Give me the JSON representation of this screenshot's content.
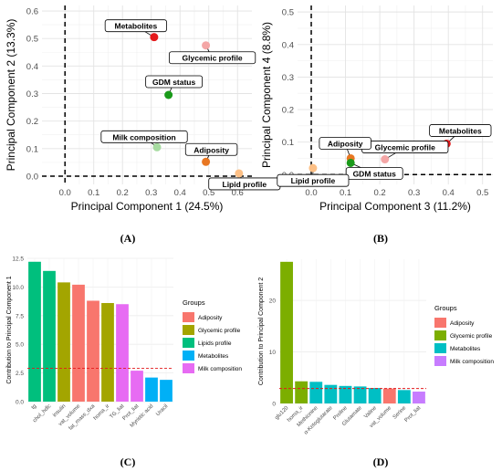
{
  "panels": {
    "A": "(A)",
    "B": "(B)",
    "C": "(C)",
    "D": "(D)"
  },
  "colors": {
    "adiposity": "#F8766D",
    "glycemic": "#7CAE00",
    "lipids": "#00BE67",
    "metabolites": "#00A9FF",
    "milk": "#FF61F2",
    "metabolites_d": "#00BFC4",
    "milk_d": "#C77CFF",
    "threshold": "#E31A1C"
  },
  "chart_data": [
    {
      "type": "scatter",
      "id": "A",
      "xlabel": "Principal Component 1 (24.5%)",
      "ylabel": "Principal Component 2 (13.3%)",
      "xlim": [
        -0.08,
        0.65
      ],
      "ylim": [
        -0.03,
        0.62
      ],
      "xticks": [
        "0.0",
        "0.1",
        "0.2",
        "0.3",
        "0.4",
        "0.5",
        "0.6"
      ],
      "yticks": [
        "0.0",
        "0.1",
        "0.2",
        "0.3",
        "0.4",
        "0.5",
        "0.6"
      ],
      "points": [
        {
          "label": "Metabolites",
          "x": 0.31,
          "y": 0.505,
          "color": "#E41A1C"
        },
        {
          "label": "Glycemic profile",
          "x": 0.49,
          "y": 0.475,
          "color": "#F4A6A6"
        },
        {
          "label": "GDM status",
          "x": 0.36,
          "y": 0.295,
          "color": "#1A9A1A"
        },
        {
          "label": "Milk composition",
          "x": 0.32,
          "y": 0.105,
          "color": "#A6DBA0"
        },
        {
          "label": "Adiposity",
          "x": 0.49,
          "y": 0.052,
          "color": "#E87722"
        },
        {
          "label": "Lipid profile",
          "x": 0.605,
          "y": 0.01,
          "color": "#FDC086"
        }
      ]
    },
    {
      "type": "scatter",
      "id": "B",
      "xlabel": "Principal Component 3 (11.2%)",
      "ylabel": "Principal Component 4 (8.8%)",
      "xlim": [
        -0.04,
        0.53
      ],
      "ylim": [
        -0.03,
        0.52
      ],
      "xticks": [
        "0.0",
        "0.1",
        "0.2",
        "0.3",
        "0.4",
        "0.5"
      ],
      "yticks": [
        "0.0",
        "0.1",
        "0.2",
        "0.3",
        "0.4",
        "0.5"
      ],
      "points": [
        {
          "label": "Metabolites",
          "x": 0.395,
          "y": 0.095,
          "color": "#E41A1C"
        },
        {
          "label": "Glycemic profile",
          "x": 0.215,
          "y": 0.047,
          "color": "#F4A6A6"
        },
        {
          "label": "Adiposity",
          "x": 0.115,
          "y": 0.05,
          "color": "#E87722"
        },
        {
          "label": "GDM status",
          "x": 0.115,
          "y": 0.036,
          "color": "#1A9A1A"
        },
        {
          "label": "Lipid profile",
          "x": 0.005,
          "y": 0.02,
          "color": "#FDC086"
        }
      ]
    },
    {
      "type": "bar",
      "id": "C",
      "ylabel": "Contribution to Principal Component 1",
      "ylim": [
        0,
        12.5
      ],
      "yticks": [
        "0.0",
        "2.5",
        "5.0",
        "7.5",
        "10.0",
        "12.5"
      ],
      "threshold": 2.9,
      "legend_title": "Groups",
      "legend": [
        {
          "name": "Adiposity",
          "color": "#F8766D"
        },
        {
          "name": "Glycemic profile",
          "color": "#A3A500"
        },
        {
          "name": "Lipids profile",
          "color": "#00BF7D"
        },
        {
          "name": "Metabolites",
          "color": "#00B0F6"
        },
        {
          "name": "Milk composition",
          "color": "#E76BF3"
        }
      ],
      "bars": [
        {
          "label": "tg",
          "value": 12.2,
          "group": "Lipids profile"
        },
        {
          "label": "chol_hdlc",
          "value": 11.4,
          "group": "Lipids profile"
        },
        {
          "label": "insulin",
          "value": 10.4,
          "group": "Glycemic profile"
        },
        {
          "label": "vat_volume",
          "value": 10.2,
          "group": "Adiposity"
        },
        {
          "label": "fat_mass_dxa",
          "value": 8.8,
          "group": "Adiposity"
        },
        {
          "label": "homa_ir",
          "value": 8.6,
          "group": "Glycemic profile"
        },
        {
          "label": "TG_liat",
          "value": 8.5,
          "group": "Milk composition"
        },
        {
          "label": "Prot_liat",
          "value": 2.7,
          "group": "Milk composition"
        },
        {
          "label": "Myristic acid",
          "value": 2.1,
          "group": "Metabolites"
        },
        {
          "label": "Uracil",
          "value": 1.9,
          "group": "Metabolites"
        }
      ]
    },
    {
      "type": "bar",
      "id": "D",
      "ylabel": "Contribution to Principal Component 2",
      "ylim": [
        0,
        28
      ],
      "yticks": [
        "0",
        "10",
        "20"
      ],
      "threshold": 2.9,
      "legend_title": "Groups",
      "legend": [
        {
          "name": "Adiposity",
          "color": "#F8766D"
        },
        {
          "name": "Glycemic profile",
          "color": "#7CAE00"
        },
        {
          "name": "Metabolites",
          "color": "#00BFC4"
        },
        {
          "name": "Milk composition",
          "color": "#C77CFF"
        }
      ],
      "bars": [
        {
          "label": "glu120",
          "value": 27.5,
          "group": "Glycemic profile"
        },
        {
          "label": "homa_ir",
          "value": 4.3,
          "group": "Glycemic profile"
        },
        {
          "label": "Methionine",
          "value": 4.2,
          "group": "Metabolites"
        },
        {
          "label": "α-Ketoglutarate",
          "value": 3.6,
          "group": "Metabolites"
        },
        {
          "label": "Proline",
          "value": 3.4,
          "group": "Metabolites"
        },
        {
          "label": "Glutamate",
          "value": 3.3,
          "group": "Metabolites"
        },
        {
          "label": "Valine",
          "value": 3.0,
          "group": "Metabolites"
        },
        {
          "label": "vat_volume",
          "value": 2.9,
          "group": "Adiposity"
        },
        {
          "label": "Serine",
          "value": 2.6,
          "group": "Metabolites"
        },
        {
          "label": "Prot_liat",
          "value": 2.3,
          "group": "Milk composition"
        }
      ]
    }
  ]
}
